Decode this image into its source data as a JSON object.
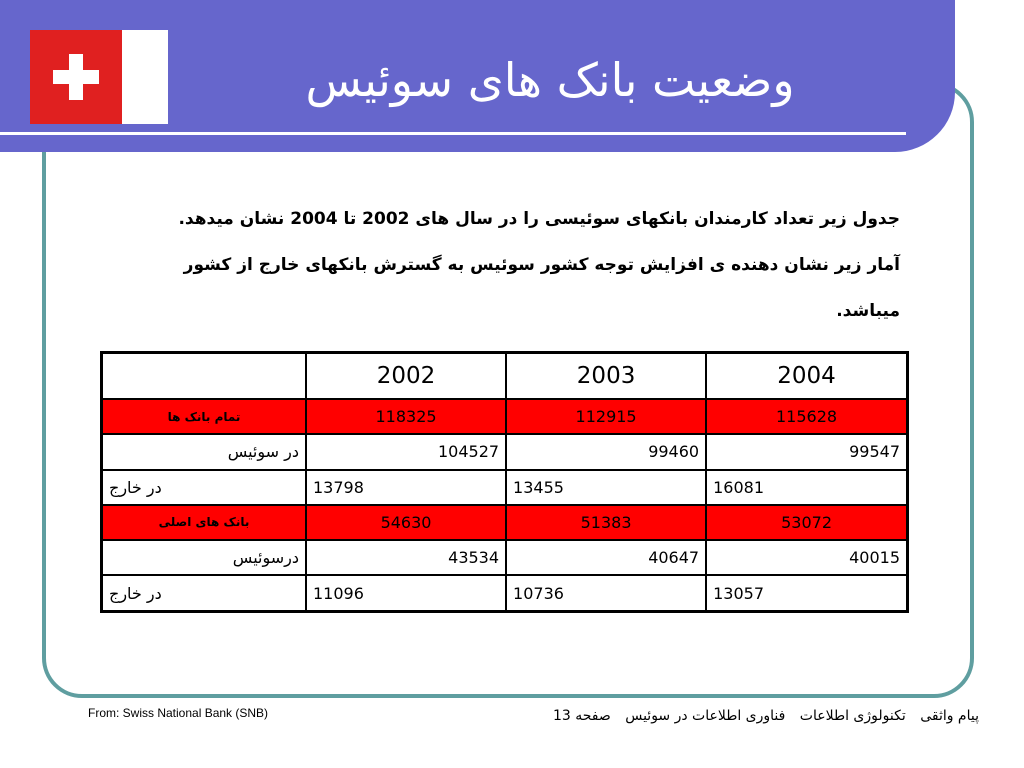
{
  "slide": {
    "title": "وضعیت بانک های سوئیس"
  },
  "intro": {
    "line1": "جدول زیر تعداد کارمندان بانکهای سوئیسی را در سال های 2002 تا 2004 نشان میدهد.",
    "line2": "آمار زیر نشان دهنده ی افزایش توجه کشور سوئیس به گسترش بانکهای خارج از کشور میباشد."
  },
  "table": {
    "years": [
      "2002",
      "2003",
      "2004"
    ],
    "rows": [
      {
        "label": "تمام بانک ها",
        "values": [
          "118325",
          "112915",
          "115628"
        ]
      },
      {
        "label": "در سوئیس",
        "values": [
          "104527",
          "99460",
          "99547"
        ]
      },
      {
        "label": "در خارج",
        "values": [
          "13798",
          "13455",
          "16081"
        ]
      },
      {
        "label": "بانک های اصلی",
        "values": [
          "54630",
          "51383",
          "53072"
        ]
      },
      {
        "label": "درسوئیس",
        "values": [
          "43534",
          "40647",
          "40015"
        ]
      },
      {
        "label": "در خارج",
        "values": [
          "11096",
          "10736",
          "13057"
        ]
      }
    ]
  },
  "footer": {
    "source": "From: Swiss National Bank (SNB)",
    "author": "پیام واثقی",
    "course": "تکنولوژی اطلاعات",
    "topic": "فناوری اطلاعات در سوئیس",
    "page": "صفحه 13"
  },
  "colors": {
    "banner": "#6666cc",
    "frame": "#5f9ea0",
    "highlight_row": "#ff0000",
    "flag_red": "#e02020"
  }
}
